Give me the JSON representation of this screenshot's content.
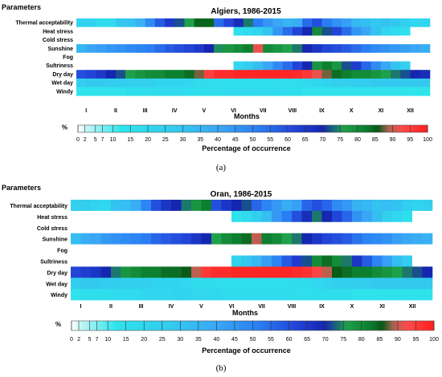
{
  "chart_data": [
    {
      "type": "heatmap",
      "panel_label": "(a)",
      "title": "Algiers, 1986-2015",
      "row_header": "Parameters",
      "xlabel": "Months",
      "rows": [
        "Thermal acceptability",
        "Heat stress",
        "Cold stress",
        "Sunshine",
        "Fog",
        "Sultriness",
        "Dry day",
        "Wet day",
        "Windy"
      ],
      "months": [
        "I",
        "II",
        "III",
        "IV",
        "V",
        "VI",
        "VII",
        "VIII",
        "IX",
        "X",
        "XI",
        "XII"
      ],
      "periods_per_month": 3,
      "values": [
        [
          22,
          22,
          18,
          18,
          28,
          30,
          36,
          48,
          58,
          65,
          72,
          76,
          85,
          85,
          55,
          62,
          68,
          74,
          52,
          45,
          40,
          35,
          38,
          55,
          60,
          52,
          46,
          42,
          34,
          32,
          28,
          30,
          28,
          24,
          20,
          22
        ],
        [
          0,
          0,
          0,
          0,
          0,
          0,
          0,
          0,
          0,
          0,
          0,
          0,
          0,
          0,
          0,
          0,
          15,
          18,
          22,
          30,
          45,
          55,
          62,
          70,
          80,
          72,
          62,
          55,
          45,
          40,
          30,
          22,
          18,
          15,
          0,
          0
        ],
        [
          0,
          0,
          0,
          0,
          0,
          0,
          0,
          0,
          0,
          0,
          0,
          0,
          0,
          0,
          0,
          0,
          0,
          0,
          0,
          0,
          0,
          0,
          0,
          0,
          0,
          0,
          0,
          0,
          0,
          0,
          0,
          0,
          0,
          0,
          0,
          0
        ],
        [
          35,
          40,
          42,
          45,
          46,
          48,
          50,
          52,
          55,
          58,
          60,
          62,
          65,
          70,
          75,
          78,
          80,
          82,
          92,
          80,
          78,
          76,
          74,
          70,
          66,
          62,
          60,
          58,
          55,
          52,
          48,
          46,
          44,
          42,
          40,
          38
        ],
        [
          0,
          0,
          0,
          0,
          0,
          0,
          0,
          0,
          0,
          0,
          0,
          0,
          0,
          0,
          0,
          0,
          0,
          0,
          0,
          0,
          0,
          0,
          0,
          0,
          0,
          0,
          0,
          0,
          0,
          0,
          0,
          0,
          0,
          0,
          0,
          0
        ],
        [
          0,
          0,
          0,
          0,
          0,
          0,
          0,
          0,
          0,
          0,
          0,
          0,
          0,
          0,
          0,
          0,
          20,
          26,
          32,
          40,
          48,
          55,
          62,
          70,
          78,
          82,
          78,
          72,
          64,
          56,
          48,
          40,
          30,
          24,
          0,
          0
        ],
        [
          60,
          62,
          65,
          70,
          72,
          76,
          78,
          80,
          80,
          82,
          82,
          84,
          88,
          95,
          98,
          98,
          99,
          99,
          99,
          99,
          99,
          99,
          98,
          96,
          92,
          88,
          84,
          82,
          80,
          80,
          78,
          76,
          74,
          72,
          70,
          68
        ],
        [
          26,
          28,
          28,
          26,
          26,
          24,
          24,
          24,
          22,
          22,
          22,
          20,
          18,
          18,
          16,
          16,
          16,
          16,
          16,
          16,
          16,
          16,
          18,
          18,
          20,
          22,
          24,
          24,
          26,
          26,
          28,
          28,
          28,
          28,
          28,
          28
        ],
        [
          12,
          14,
          14,
          14,
          14,
          16,
          16,
          16,
          18,
          18,
          18,
          16,
          16,
          16,
          16,
          18,
          18,
          18,
          18,
          18,
          18,
          16,
          16,
          14,
          14,
          14,
          14,
          14,
          14,
          14,
          14,
          14,
          14,
          12,
          12,
          12
        ]
      ],
      "legend_label": "Percentage of occurrence",
      "legend_symbol": "%",
      "legend_ticks": [
        0,
        2,
        5,
        7,
        10,
        15,
        20,
        25,
        30,
        35,
        40,
        45,
        50,
        55,
        60,
        65,
        70,
        75,
        80,
        85,
        90,
        95,
        100
      ],
      "range": [
        0,
        100
      ]
    },
    {
      "type": "heatmap",
      "panel_label": "(b)",
      "title": "Oran, 1986-2015",
      "row_header": "Parameters",
      "xlabel": "Months",
      "rows": [
        "Thermal acceptability",
        "Heat stress",
        "Cold stress",
        "Sunshine",
        "Fog",
        "Sultriness",
        "Dry day",
        "Wet day",
        "Windy"
      ],
      "months": [
        "I",
        "II",
        "III",
        "IV",
        "V",
        "VI",
        "VII",
        "VIII",
        "IX",
        "X",
        "XI",
        "XII"
      ],
      "periods_per_month": 3,
      "values": [
        [
          24,
          26,
          22,
          20,
          30,
          32,
          38,
          50,
          60,
          66,
          70,
          74,
          78,
          82,
          60,
          66,
          70,
          72,
          56,
          50,
          44,
          38,
          42,
          56,
          60,
          56,
          48,
          44,
          36,
          34,
          30,
          32,
          30,
          26,
          22,
          24
        ],
        [
          0,
          0,
          0,
          0,
          0,
          0,
          0,
          0,
          0,
          0,
          0,
          0,
          0,
          0,
          0,
          0,
          14,
          18,
          24,
          32,
          44,
          52,
          60,
          68,
          74,
          70,
          62,
          56,
          46,
          40,
          32,
          24,
          20,
          16,
          0,
          0
        ],
        [
          0,
          0,
          0,
          0,
          0,
          0,
          0,
          0,
          0,
          0,
          0,
          0,
          0,
          0,
          0,
          0,
          0,
          0,
          0,
          0,
          0,
          0,
          0,
          0,
          0,
          0,
          0,
          0,
          0,
          0,
          0,
          0,
          0,
          0,
          0,
          0
        ],
        [
          32,
          38,
          40,
          44,
          46,
          48,
          50,
          52,
          56,
          58,
          60,
          62,
          66,
          70,
          76,
          80,
          82,
          84,
          90,
          82,
          80,
          76,
          74,
          70,
          66,
          62,
          60,
          58,
          54,
          50,
          48,
          46,
          42,
          40,
          38,
          36
        ],
        [
          0,
          0,
          0,
          0,
          0,
          0,
          0,
          0,
          0,
          0,
          0,
          0,
          0,
          0,
          0,
          0,
          0,
          0,
          0,
          0,
          0,
          0,
          0,
          0,
          0,
          0,
          0,
          0,
          0,
          0,
          0,
          0,
          0,
          0,
          0,
          0
        ],
        [
          0,
          0,
          0,
          0,
          0,
          0,
          0,
          0,
          0,
          0,
          0,
          0,
          0,
          0,
          0,
          0,
          22,
          28,
          34,
          42,
          50,
          58,
          64,
          72,
          80,
          84,
          80,
          74,
          66,
          58,
          50,
          42,
          32,
          26,
          0,
          0
        ],
        [
          62,
          64,
          66,
          70,
          74,
          78,
          80,
          82,
          82,
          84,
          84,
          86,
          90,
          96,
          98,
          98,
          99,
          99,
          99,
          99,
          99,
          99,
          98,
          97,
          94,
          90,
          86,
          84,
          82,
          82,
          80,
          78,
          76,
          74,
          72,
          70
        ],
        [
          26,
          28,
          28,
          26,
          26,
          24,
          24,
          24,
          22,
          22,
          22,
          20,
          18,
          18,
          16,
          16,
          16,
          16,
          16,
          16,
          16,
          16,
          18,
          18,
          20,
          22,
          24,
          24,
          26,
          26,
          28,
          28,
          28,
          28,
          28,
          28
        ],
        [
          14,
          16,
          16,
          16,
          18,
          18,
          18,
          20,
          20,
          20,
          22,
          22,
          20,
          20,
          20,
          18,
          18,
          18,
          18,
          18,
          18,
          18,
          16,
          16,
          16,
          16,
          16,
          16,
          14,
          14,
          14,
          14,
          14,
          14,
          14,
          14
        ]
      ],
      "legend_label": "Percentage of occurrence",
      "legend_symbol": "%",
      "legend_ticks": [
        0,
        2,
        5,
        7,
        10,
        15,
        20,
        25,
        30,
        35,
        40,
        45,
        50,
        55,
        60,
        65,
        70,
        75,
        80,
        85,
        90,
        95,
        100
      ],
      "range": [
        0,
        100
      ]
    }
  ],
  "colors": {
    "scale_stops": [
      "#ffffff",
      "#c8f6f6",
      "#2ee5ec",
      "#33c9ef",
      "#3aa7f5",
      "#2a7df2",
      "#2244d8",
      "#1526b0",
      "#1fa04a",
      "#0d8030",
      "#0a5a18",
      "#aa6450",
      "#ff4a4a",
      "#ff2020"
    ]
  }
}
